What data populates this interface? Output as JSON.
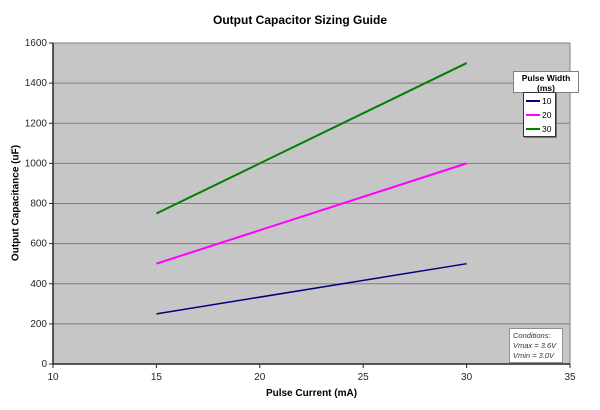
{
  "chart_data": {
    "type": "line",
    "title": "Output Capacitor Sizing Guide",
    "xlabel": "Pulse Current (mA)",
    "ylabel": "Output Capacitance (uF)",
    "xlim": [
      10,
      35
    ],
    "ylim": [
      0,
      1600
    ],
    "x_ticks": [
      10,
      15,
      20,
      25,
      30,
      35
    ],
    "y_ticks": [
      0,
      200,
      400,
      600,
      800,
      1000,
      1200,
      1400,
      1600
    ],
    "grid": "horizontal-only",
    "plot_bg": "#c6c6c6",
    "grid_color": "#808080",
    "axis_color": "#262626",
    "x": [
      15,
      30
    ],
    "series": [
      {
        "name": "10",
        "color": "#000080",
        "width": 1.5,
        "values": [
          250,
          500
        ]
      },
      {
        "name": "20",
        "color": "#ff00ff",
        "width": 2,
        "values": [
          500,
          1000
        ]
      },
      {
        "name": "30",
        "color": "#008000",
        "width": 2,
        "values": [
          750,
          1500
        ]
      }
    ],
    "legend": {
      "position": "right",
      "title_line1": "Pulse Width",
      "title_line2": "(ms)"
    },
    "annotation": {
      "lines": [
        "Conditions:",
        "Vmax = 3.6V",
        "Vmin = 3.0V"
      ]
    }
  }
}
